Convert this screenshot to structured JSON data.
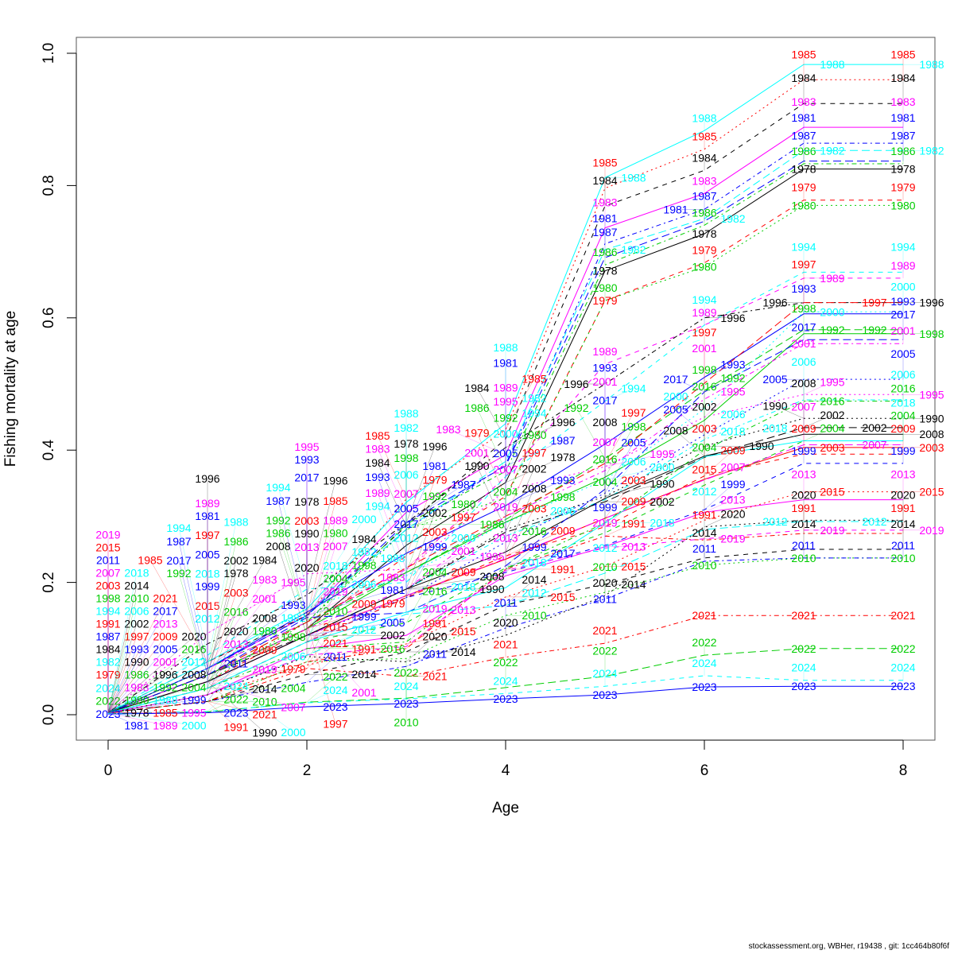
{
  "chart_data": {
    "type": "line",
    "xlabel": "Age",
    "ylabel": "Fishing mortality at age",
    "xlim": [
      0,
      8
    ],
    "ylim": [
      0,
      1
    ],
    "x_ticks": [
      "0",
      "2",
      "4",
      "6",
      "8"
    ],
    "y_ticks": [
      "0.0",
      "0.2",
      "0.4",
      "0.6",
      "0.8",
      "1.0"
    ],
    "grid": false,
    "legend": "none (each point labelled with its year)",
    "x": [
      0,
      1,
      2,
      3,
      4,
      5,
      6,
      7,
      8
    ],
    "colors": [
      "#000000",
      "#FF0000",
      "#00CD00",
      "#0000FF",
      "#00FFFF",
      "#FF00FF"
    ],
    "series": [
      {
        "name": "1978",
        "values": [
          0.003,
          0.06,
          0.13,
          0.256,
          0.351,
          0.671,
          0.727,
          0.825,
          0.825
        ]
      },
      {
        "name": "1979",
        "values": [
          0.003,
          0.05,
          0.13,
          0.24,
          0.33,
          0.626,
          0.683,
          0.778,
          0.778
        ]
      },
      {
        "name": "1980",
        "values": [
          0.003,
          0.05,
          0.14,
          0.28,
          0.327,
          0.626,
          0.677,
          0.77,
          0.77
        ]
      },
      {
        "name": "1981",
        "values": [
          0.003,
          0.07,
          0.15,
          0.28,
          0.378,
          0.712,
          0.764,
          0.864,
          0.864
        ]
      },
      {
        "name": "1982",
        "values": [
          0.003,
          0.07,
          0.15,
          0.28,
          0.383,
          0.703,
          0.75,
          0.853,
          0.853
        ]
      },
      {
        "name": "1983",
        "values": [
          0.003,
          0.07,
          0.15,
          0.306,
          0.393,
          0.736,
          0.788,
          0.888,
          0.888
        ]
      },
      {
        "name": "1984",
        "values": [
          0.003,
          0.08,
          0.15,
          0.285,
          0.417,
          0.769,
          0.823,
          0.924,
          0.924
        ]
      },
      {
        "name": "1985",
        "values": [
          0.003,
          0.08,
          0.15,
          0.326,
          0.431,
          0.796,
          0.855,
          0.96,
          0.96
        ]
      },
      {
        "name": "1986",
        "values": [
          0.003,
          0.07,
          0.14,
          0.288,
          0.368,
          0.68,
          0.74,
          0.833,
          0.833
        ]
      },
      {
        "name": "1987",
        "values": [
          0.003,
          0.07,
          0.15,
          0.29,
          0.376,
          0.691,
          0.746,
          0.837,
          0.837
        ]
      },
      {
        "name": "1988",
        "values": [
          0.003,
          0.08,
          0.16,
          0.321,
          0.44,
          0.812,
          0.883,
          0.983,
          0.983
        ]
      },
      {
        "name": "1989",
        "values": [
          0.003,
          0.07,
          0.14,
          0.22,
          0.36,
          0.53,
          0.589,
          0.66,
          0.66
        ]
      },
      {
        "name": "1990",
        "values": [
          0.003,
          0.05,
          0.12,
          0.19,
          0.28,
          0.33,
          0.406,
          0.448,
          0.448
        ]
      },
      {
        "name": "1991",
        "values": [
          0.003,
          0.02,
          0.08,
          0.1,
          0.22,
          0.27,
          0.264,
          0.274,
          0.274
        ]
      },
      {
        "name": "1992",
        "values": [
          0.003,
          0.06,
          0.14,
          0.215,
          0.295,
          0.387,
          0.49,
          0.582,
          0.582
        ]
      },
      {
        "name": "1993",
        "values": [
          0.003,
          0.07,
          0.155,
          0.244,
          0.316,
          0.409,
          0.51,
          0.606,
          0.606
        ]
      },
      {
        "name": "1994",
        "values": [
          0.003,
          0.09,
          0.19,
          0.2,
          0.36,
          0.474,
          0.589,
          0.669,
          0.669
        ]
      },
      {
        "name": "1995",
        "values": [
          0.003,
          0.123,
          0.213,
          0.22,
          0.339,
          0.375,
          0.45,
          0.484,
          0.484
        ]
      },
      {
        "name": "1996",
        "values": [
          0.003,
          0.107,
          0.181,
          0.29,
          0.404,
          0.5,
          0.6,
          0.623,
          0.623
        ]
      },
      {
        "name": "1997",
        "values": [
          0.003,
          0.06,
          0.14,
          0.222,
          0.3,
          0.38,
          0.501,
          0.623,
          0.623
        ]
      },
      {
        "name": "1998",
        "values": [
          0.003,
          0.06,
          0.13,
          0.215,
          0.291,
          0.359,
          0.445,
          0.576,
          0.576
        ]
      },
      {
        "name": "1999",
        "values": [
          0.003,
          0.04,
          0.11,
          0.177,
          0.215,
          0.256,
          0.31,
          0.38,
          0.38
        ]
      },
      {
        "name": "2000",
        "values": [
          0.003,
          0.07,
          0.161,
          0.21,
          0.29,
          0.355,
          0.462,
          0.609,
          0.609
        ]
      },
      {
        "name": "2001",
        "values": [
          0.003,
          0.06,
          0.13,
          0.19,
          0.3,
          0.369,
          0.477,
          0.561,
          0.561
        ]
      },
      {
        "name": "2002",
        "values": [
          0.003,
          0.06,
          0.12,
          0.19,
          0.276,
          0.322,
          0.389,
          0.434,
          0.434
        ]
      },
      {
        "name": "2003",
        "values": [
          0.003,
          0.05,
          0.12,
          0.18,
          0.235,
          0.297,
          0.356,
          0.404,
          0.404
        ]
      },
      {
        "name": "2004",
        "values": [
          0.003,
          0.04,
          0.11,
          0.139,
          0.222,
          0.275,
          0.347,
          0.414,
          0.414
        ]
      },
      {
        "name": "2005",
        "values": [
          0.003,
          0.05,
          0.12,
          0.177,
          0.261,
          0.335,
          0.423,
          0.507,
          0.507
        ]
      },
      {
        "name": "2006",
        "values": [
          0.003,
          0.05,
          0.12,
          0.19,
          0.27,
          0.325,
          0.416,
          0.476,
          0.476
        ]
      },
      {
        "name": "2007",
        "values": [
          0.003,
          0.05,
          0.12,
          0.18,
          0.236,
          0.297,
          0.355,
          0.408,
          0.408
        ]
      },
      {
        "name": "2008",
        "values": [
          0.003,
          0.05,
          0.12,
          0.19,
          0.246,
          0.327,
          0.391,
          0.424,
          0.424
        ]
      },
      {
        "name": "2009",
        "values": [
          0.003,
          0.04,
          0.11,
          0.177,
          0.24,
          0.284,
          0.361,
          0.394,
          0.394
        ]
      },
      {
        "name": "2010",
        "values": [
          0.003,
          0.02,
          0.08,
          0.085,
          0.15,
          0.185,
          0.226,
          0.237,
          0.237
        ]
      },
      {
        "name": "2011",
        "values": [
          0.003,
          0.02,
          0.049,
          0.073,
          0.131,
          0.175,
          0.232,
          0.237,
          0.237
        ]
      },
      {
        "name": "2012",
        "values": [
          0.003,
          0.03,
          0.09,
          0.152,
          0.165,
          0.214,
          0.28,
          0.292,
          0.292
        ]
      },
      {
        "name": "2013",
        "values": [
          0.003,
          0.03,
          0.1,
          0.12,
          0.21,
          0.254,
          0.306,
          0.325,
          0.325
        ]
      },
      {
        "name": "2014",
        "values": [
          0.003,
          0.02,
          0.061,
          0.095,
          0.166,
          0.197,
          0.237,
          0.25,
          0.25
        ]
      },
      {
        "name": "2015",
        "values": [
          0.003,
          0.03,
          0.075,
          0.107,
          0.178,
          0.224,
          0.294,
          0.337,
          0.337
        ]
      },
      {
        "name": "2016",
        "values": [
          0.003,
          0.04,
          0.1,
          0.11,
          0.22,
          0.29,
          0.4,
          0.474,
          0.474
        ]
      },
      {
        "name": "2017",
        "values": [
          0.003,
          0.06,
          0.147,
          0.154,
          0.225,
          0.341,
          0.488,
          0.567,
          0.567
        ]
      },
      {
        "name": "2018",
        "values": [
          0.003,
          0.04,
          0.11,
          0.155,
          0.192,
          0.29,
          0.39,
          0.414,
          0.414
        ]
      },
      {
        "name": "2019",
        "values": [
          0.003,
          0.03,
          0.09,
          0.103,
          0.218,
          0.252,
          0.266,
          0.279,
          0.279
        ]
      },
      {
        "name": "2020",
        "values": [
          0.003,
          0.03,
          0.088,
          0.08,
          0.12,
          0.18,
          0.284,
          0.294,
          0.294
        ]
      },
      {
        "name": "2021",
        "values": [
          0.003,
          0.02,
          0.07,
          0.058,
          0.087,
          0.108,
          0.15,
          0.15,
          0.15
        ]
      },
      {
        "name": "2022",
        "values": [
          0.002,
          0.004,
          0.019,
          0.025,
          0.041,
          0.058,
          0.09,
          0.1,
          0.1
        ]
      },
      {
        "name": "2023",
        "values": [
          0.001,
          0.003,
          0.012,
          0.017,
          0.024,
          0.03,
          0.042,
          0.043,
          0.043
        ]
      },
      {
        "name": "2024",
        "values": [
          0.002,
          0.005,
          0.018,
          0.024,
          0.032,
          0.043,
          0.059,
          0.052,
          0.052
        ]
      }
    ]
  },
  "footer": "stockassessment.org, WBHer, r19438 , git: 1cc464b80f6f"
}
